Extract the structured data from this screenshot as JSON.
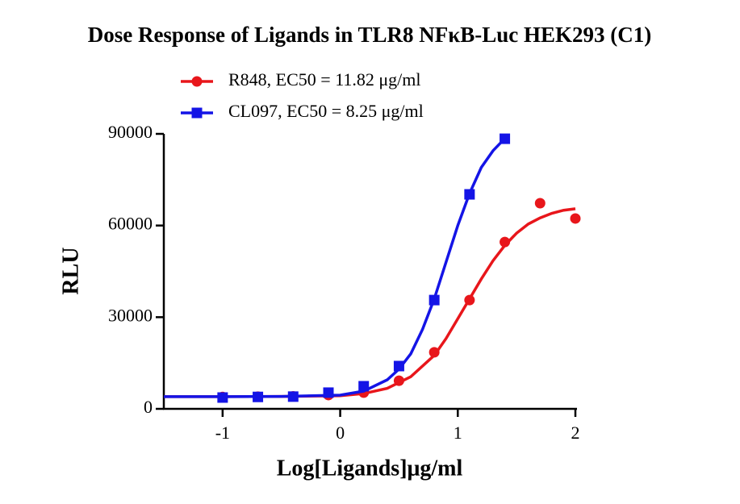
{
  "chart_data": {
    "type": "scatter",
    "title": "Dose Response of Ligands in TLR8 NFκB-Luc HEK293 (C1)",
    "x_label": "Log[Ligands]μg/ml",
    "y_label": "RLU",
    "xlim": [
      -1.5,
      2
    ],
    "xticks": [
      -1,
      0,
      1,
      2
    ],
    "ylim": [
      0,
      90000
    ],
    "yticks": [
      0,
      30000,
      60000,
      90000
    ],
    "series": [
      {
        "name": "R848, EC50 = 11.82 μg/ml",
        "color": "#e8161b",
        "marker": "circle",
        "x": [
          -1,
          -0.7,
          -0.4,
          -0.1,
          0.2,
          0.5,
          0.8,
          1.1,
          1.4,
          1.7,
          2
        ],
        "values": [
          3900,
          4000,
          4100,
          4500,
          5300,
          9200,
          18500,
          35600,
          54600,
          67300,
          62300
        ],
        "fit": {
          "x": [
            -1.5,
            -1,
            -0.5,
            0,
            0.2,
            0.4,
            0.6,
            0.8,
            0.9,
            1.0,
            1.1,
            1.2,
            1.3,
            1.4,
            1.5,
            1.6,
            1.7,
            1.8,
            1.9,
            2
          ],
          "values": [
            4000,
            4000,
            4050,
            4300,
            5000,
            6700,
            10500,
            17500,
            23000,
            29500,
            36000,
            42500,
            48500,
            53500,
            57500,
            60500,
            62500,
            64000,
            65000,
            65500
          ]
        }
      },
      {
        "name": "CL097, EC50 = 8.25 μg/ml",
        "color": "#1414e6",
        "marker": "square",
        "x": [
          -1,
          -0.7,
          -0.4,
          -0.1,
          0.2,
          0.5,
          0.8,
          1.1,
          1.4
        ],
        "values": [
          3700,
          3900,
          4000,
          5300,
          7400,
          14000,
          35600,
          70200,
          88400
        ],
        "fit": {
          "x": [
            -1.5,
            -1,
            -0.5,
            0,
            0.2,
            0.4,
            0.5,
            0.6,
            0.7,
            0.8,
            0.9,
            1.0,
            1.1,
            1.2,
            1.3,
            1.4
          ],
          "values": [
            4000,
            4000,
            4050,
            4500,
            5800,
            9500,
            13000,
            18000,
            26000,
            36000,
            48000,
            60000,
            70500,
            79000,
            84500,
            88500
          ]
        }
      }
    ]
  }
}
